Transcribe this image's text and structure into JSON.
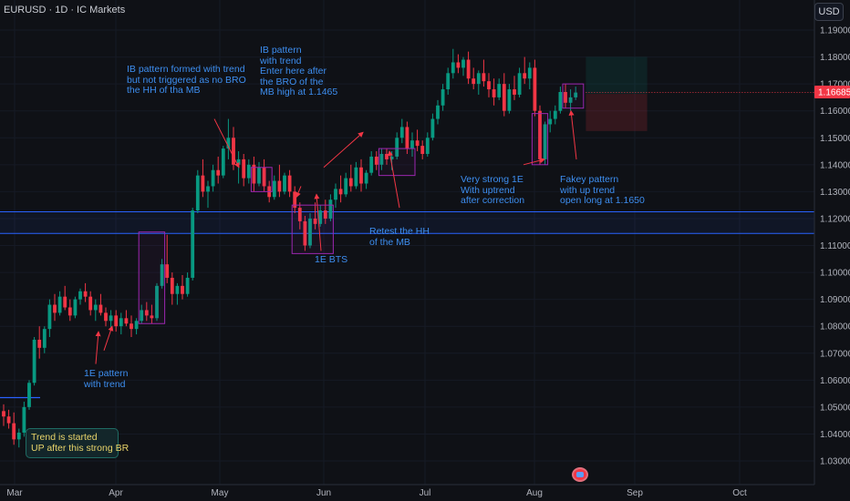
{
  "header": {
    "title": "EURUSD · 1D · IC Markets"
  },
  "currency_button": "USD",
  "current_price_label": "1.16685",
  "chart_data": {
    "type": "candlestick",
    "symbol": "EURUSD",
    "timeframe": "1D",
    "broker": "IC Markets",
    "ylim": [
      1.025,
      1.195
    ],
    "y_ticks": [
      "1.19000",
      "1.18000",
      "1.17000",
      "1.16000",
      "1.15000",
      "1.14000",
      "1.13000",
      "1.12000",
      "1.11000",
      "1.10000",
      "1.09000",
      "1.08000",
      "1.07000",
      "1.06000",
      "1.05000",
      "1.04000",
      "1.03000"
    ],
    "x_ticks": [
      "Mar",
      "Apr",
      "May",
      "Jun",
      "Jul",
      "Aug",
      "Sep",
      "Oct"
    ],
    "colors": {
      "up": "#089981",
      "down": "#f23645",
      "box": "#9c27b0",
      "zone": "#2962ff",
      "annotation": "#3d8ef0",
      "arrow": "#f23645"
    },
    "resistance_zone": [
      1.1145,
      1.1225
    ],
    "breakout_level": 1.0535,
    "ohlc": [
      [
        1.0485,
        1.051,
        1.043,
        1.0465
      ],
      [
        1.0465,
        1.049,
        1.042,
        1.044
      ],
      [
        1.044,
        1.048,
        1.036,
        1.038
      ],
      [
        1.038,
        1.042,
        1.035,
        1.0405
      ],
      [
        1.0405,
        1.052,
        1.039,
        1.05
      ],
      [
        1.05,
        1.06,
        1.049,
        1.059
      ],
      [
        1.059,
        1.076,
        1.058,
        1.075
      ],
      [
        1.075,
        1.08,
        1.068,
        1.072
      ],
      [
        1.072,
        1.08,
        1.07,
        1.079
      ],
      [
        1.079,
        1.09,
        1.076,
        1.088
      ],
      [
        1.088,
        1.092,
        1.082,
        1.085
      ],
      [
        1.085,
        1.093,
        1.084,
        1.091
      ],
      [
        1.091,
        1.095,
        1.086,
        1.087
      ],
      [
        1.087,
        1.09,
        1.082,
        1.084
      ],
      [
        1.084,
        1.091,
        1.083,
        1.09
      ],
      [
        1.09,
        1.094,
        1.088,
        1.093
      ],
      [
        1.093,
        1.096,
        1.089,
        1.091
      ],
      [
        1.091,
        1.093,
        1.084,
        1.086
      ],
      [
        1.086,
        1.09,
        1.082,
        1.088
      ],
      [
        1.088,
        1.092,
        1.084,
        1.085
      ],
      [
        1.085,
        1.087,
        1.08,
        1.082
      ],
      [
        1.082,
        1.086,
        1.079,
        1.084
      ],
      [
        1.084,
        1.086,
        1.078,
        1.08
      ],
      [
        1.08,
        1.085,
        1.077,
        1.083
      ],
      [
        1.083,
        1.086,
        1.08,
        1.081
      ],
      [
        1.081,
        1.084,
        1.076,
        1.079
      ],
      [
        1.079,
        1.083,
        1.077,
        1.082
      ],
      [
        1.082,
        1.088,
        1.081,
        1.086
      ],
      [
        1.086,
        1.089,
        1.082,
        1.084
      ],
      [
        1.084,
        1.088,
        1.081,
        1.083
      ],
      [
        1.083,
        1.096,
        1.082,
        1.095
      ],
      [
        1.095,
        1.105,
        1.094,
        1.103
      ],
      [
        1.103,
        1.114,
        1.096,
        1.098
      ],
      [
        1.098,
        1.1,
        1.088,
        1.092
      ],
      [
        1.092,
        1.096,
        1.088,
        1.095
      ],
      [
        1.095,
        1.099,
        1.09,
        1.092
      ],
      [
        1.092,
        1.1,
        1.091,
        1.098
      ],
      [
        1.098,
        1.124,
        1.097,
        1.123
      ],
      [
        1.123,
        1.138,
        1.122,
        1.136
      ],
      [
        1.136,
        1.142,
        1.128,
        1.13
      ],
      [
        1.13,
        1.134,
        1.124,
        1.132
      ],
      [
        1.132,
        1.14,
        1.13,
        1.138
      ],
      [
        1.138,
        1.143,
        1.133,
        1.136
      ],
      [
        1.136,
        1.147,
        1.135,
        1.146
      ],
      [
        1.146,
        1.157,
        1.142,
        1.15
      ],
      [
        1.15,
        1.154,
        1.138,
        1.14
      ],
      [
        1.14,
        1.145,
        1.133,
        1.142
      ],
      [
        1.142,
        1.144,
        1.132,
        1.135
      ],
      [
        1.135,
        1.142,
        1.133,
        1.14
      ],
      [
        1.14,
        1.143,
        1.13,
        1.133
      ],
      [
        1.133,
        1.141,
        1.132,
        1.139
      ],
      [
        1.139,
        1.142,
        1.13,
        1.132
      ],
      [
        1.132,
        1.134,
        1.126,
        1.128
      ],
      [
        1.128,
        1.136,
        1.127,
        1.134
      ],
      [
        1.134,
        1.14,
        1.128,
        1.13
      ],
      [
        1.13,
        1.137,
        1.129,
        1.136
      ],
      [
        1.136,
        1.138,
        1.128,
        1.13
      ],
      [
        1.13,
        1.132,
        1.122,
        1.124
      ],
      [
        1.124,
        1.126,
        1.116,
        1.119
      ],
      [
        1.119,
        1.121,
        1.108,
        1.11
      ],
      [
        1.11,
        1.122,
        1.109,
        1.12
      ],
      [
        1.12,
        1.126,
        1.116,
        1.118
      ],
      [
        1.118,
        1.125,
        1.117,
        1.123
      ],
      [
        1.123,
        1.127,
        1.118,
        1.12
      ],
      [
        1.12,
        1.129,
        1.119,
        1.127
      ],
      [
        1.127,
        1.133,
        1.124,
        1.131
      ],
      [
        1.131,
        1.136,
        1.126,
        1.129
      ],
      [
        1.129,
        1.137,
        1.128,
        1.135
      ],
      [
        1.135,
        1.14,
        1.13,
        1.132
      ],
      [
        1.132,
        1.141,
        1.131,
        1.139
      ],
      [
        1.139,
        1.142,
        1.13,
        1.133
      ],
      [
        1.133,
        1.138,
        1.131,
        1.137
      ],
      [
        1.137,
        1.145,
        1.136,
        1.143
      ],
      [
        1.143,
        1.145,
        1.138,
        1.14
      ],
      [
        1.14,
        1.146,
        1.138,
        1.144
      ],
      [
        1.144,
        1.146,
        1.14,
        1.142
      ],
      [
        1.142,
        1.145,
        1.138,
        1.143
      ],
      [
        1.143,
        1.152,
        1.142,
        1.15
      ],
      [
        1.15,
        1.157,
        1.148,
        1.154
      ],
      [
        1.154,
        1.156,
        1.144,
        1.146
      ],
      [
        1.146,
        1.152,
        1.143,
        1.149
      ],
      [
        1.149,
        1.153,
        1.145,
        1.147
      ],
      [
        1.147,
        1.149,
        1.142,
        1.144
      ],
      [
        1.144,
        1.152,
        1.143,
        1.15
      ],
      [
        1.15,
        1.159,
        1.149,
        1.157
      ],
      [
        1.157,
        1.164,
        1.155,
        1.162
      ],
      [
        1.162,
        1.17,
        1.16,
        1.168
      ],
      [
        1.168,
        1.176,
        1.166,
        1.174
      ],
      [
        1.174,
        1.183,
        1.172,
        1.178
      ],
      [
        1.178,
        1.181,
        1.174,
        1.176
      ],
      [
        1.176,
        1.18,
        1.173,
        1.179
      ],
      [
        1.179,
        1.182,
        1.17,
        1.172
      ],
      [
        1.172,
        1.176,
        1.168,
        1.17
      ],
      [
        1.17,
        1.175,
        1.166,
        1.174
      ],
      [
        1.174,
        1.179,
        1.169,
        1.171
      ],
      [
        1.171,
        1.174,
        1.165,
        1.168
      ],
      [
        1.168,
        1.172,
        1.162,
        1.165
      ],
      [
        1.165,
        1.172,
        1.164,
        1.17
      ],
      [
        1.17,
        1.174,
        1.158,
        1.16
      ],
      [
        1.16,
        1.17,
        1.159,
        1.168
      ],
      [
        1.168,
        1.173,
        1.164,
        1.166
      ],
      [
        1.166,
        1.176,
        1.165,
        1.174
      ],
      [
        1.174,
        1.18,
        1.17,
        1.172
      ],
      [
        1.172,
        1.178,
        1.168,
        1.176
      ],
      [
        1.176,
        1.179,
        1.158,
        1.16
      ],
      [
        1.16,
        1.162,
        1.14,
        1.142
      ],
      [
        1.142,
        1.156,
        1.14,
        1.155
      ],
      [
        1.155,
        1.16,
        1.152,
        1.157
      ],
      [
        1.157,
        1.162,
        1.155,
        1.16
      ],
      [
        1.16,
        1.169,
        1.159,
        1.167
      ],
      [
        1.167,
        1.17,
        1.161,
        1.163
      ],
      [
        1.163,
        1.168,
        1.16,
        1.165
      ],
      [
        1.165,
        1.169,
        1.164,
        1.1668
      ]
    ],
    "boxes": [
      {
        "d1": 27,
        "d2": 31,
        "p1": 1.081,
        "p2": 1.115
      },
      {
        "d1": 49,
        "d2": 52,
        "p1": 1.13,
        "p2": 1.139
      },
      {
        "d1": 57,
        "d2": 64,
        "p1": 1.107,
        "p2": 1.125
      },
      {
        "d1": 74,
        "d2": 80,
        "p1": 1.136,
        "p2": 1.146
      },
      {
        "d1": 104,
        "d2": 106,
        "p1": 1.14,
        "p2": 1.159
      },
      {
        "d1": 110,
        "d2": 113,
        "p1": 1.161,
        "p2": 1.17
      }
    ],
    "position_tool": {
      "d1": 114,
      "d2": 126,
      "entry": 1.1663,
      "stop": 1.1525,
      "target": 1.18
    },
    "arrows": [
      {
        "from": [
          105,
          1.066
        ],
        "to": [
          108,
          1.078
        ]
      },
      {
        "from": [
          114,
          1.071
        ],
        "to": [
          123,
          1.08
        ]
      },
      {
        "from": [
          235,
          1.157
        ],
        "to": [
          262,
          1.139
        ]
      },
      {
        "from": [
          355,
          1.139
        ],
        "to": [
          398,
          1.152
        ]
      },
      {
        "from": [
          330,
          1.132
        ],
        "to": [
          325,
          1.128
        ]
      },
      {
        "from": [
          352,
          1.108
        ],
        "to": [
          347,
          1.129
        ]
      },
      {
        "from": [
          438,
          1.124
        ],
        "to": [
          427,
          1.145
        ]
      },
      {
        "from": [
          574,
          1.14
        ],
        "to": [
          597,
          1.142
        ]
      },
      {
        "from": [
          632,
          1.142
        ],
        "to": [
          626,
          1.16
        ]
      }
    ],
    "annotations": [
      {
        "id": "ib1",
        "text": "IB pattern formed with trend\nbut not triggered as no BRO\nthe HH of tha MB"
      },
      {
        "id": "ib2",
        "text": "IB pattern\nwith trend\nEnter here after\nthe BRO of the\nMB high at 1.1465"
      },
      {
        "id": "retest",
        "text": "Retest the HH\nof the MB"
      },
      {
        "id": "bts",
        "text": "1E BTS"
      },
      {
        "id": "strong1e",
        "text": "Very strong 1E\nWith uptrend\nafter correction"
      },
      {
        "id": "fakey",
        "text": "Fakey pattern\nwith up trend\nopen long at 1.1650"
      },
      {
        "id": "pattern1e",
        "text": "1E pattern\nwith trend"
      }
    ],
    "callout_text": "Trend is started\nUP after this strong BR"
  }
}
